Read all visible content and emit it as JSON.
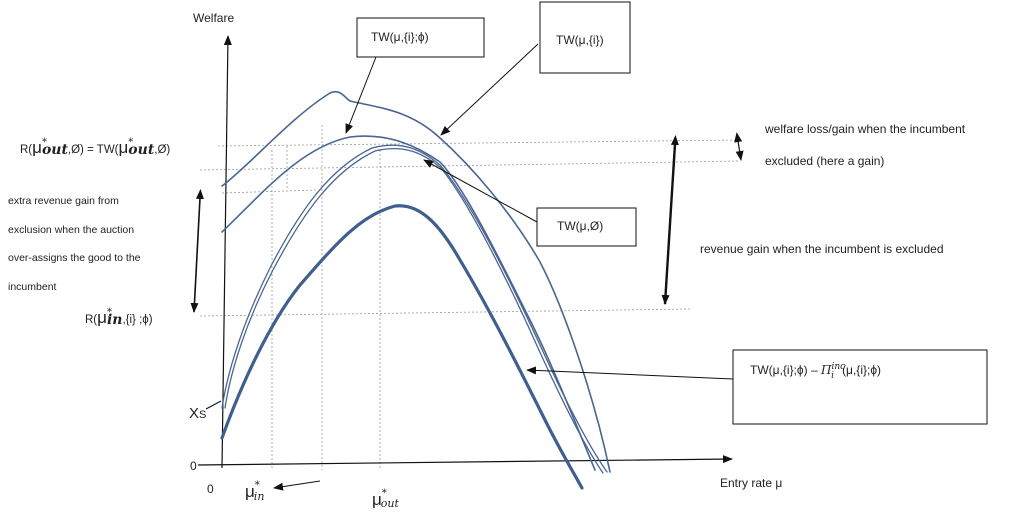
{
  "axes": {
    "y_label": "Welfare",
    "x_label": "Entry rate  μ",
    "origin_label": "0",
    "zero_tick_label": "0",
    "xs_label": "X",
    "xs_sub": "S"
  },
  "ticks": {
    "mu_in": {
      "base": "μ",
      "sup": "*",
      "sub": "in"
    },
    "mu_out": {
      "base": "μ",
      "sup": "*",
      "sub": "out"
    }
  },
  "y_labels": {
    "r_out": {
      "prefix": "R(",
      "sub": "out",
      "mid": ",Ø) = TW(",
      "suffix": ",Ø)",
      "mu": "μ",
      "star": "*"
    },
    "r_in": {
      "prefix": "R(",
      "mu": "μ",
      "star": "*",
      "sub": "in",
      "suffix": ",{i} ;ϕ)"
    }
  },
  "boxes": {
    "tw_i_phi": "TW(μ,{i};ϕ)",
    "tw_i": "TW(μ,{i})",
    "tw_empty": "TW(μ,Ø)",
    "tw_minus": {
      "prefix": "TW(μ,{i};ϕ) – ",
      "pi": "Π",
      "pi_sup": "inc",
      "pi_sub": "i",
      "suffix": "(μ,{i};ϕ)"
    }
  },
  "annotations": {
    "welfare_loss_line1": "welfare loss/gain when the incumbent",
    "welfare_loss_line2": "excluded (here a gain)",
    "revenue_gain": "revenue gain when the incumbent is excluded",
    "extra_revenue": [
      "extra revenue gain from",
      "exclusion when the auction",
      "over-assigns the good to the",
      "incumbent"
    ]
  },
  "colors": {
    "curve": "#4a6690",
    "curve_thick": "#3f5f8f",
    "axis": "#111111",
    "guide": "#9a9a9a"
  }
}
